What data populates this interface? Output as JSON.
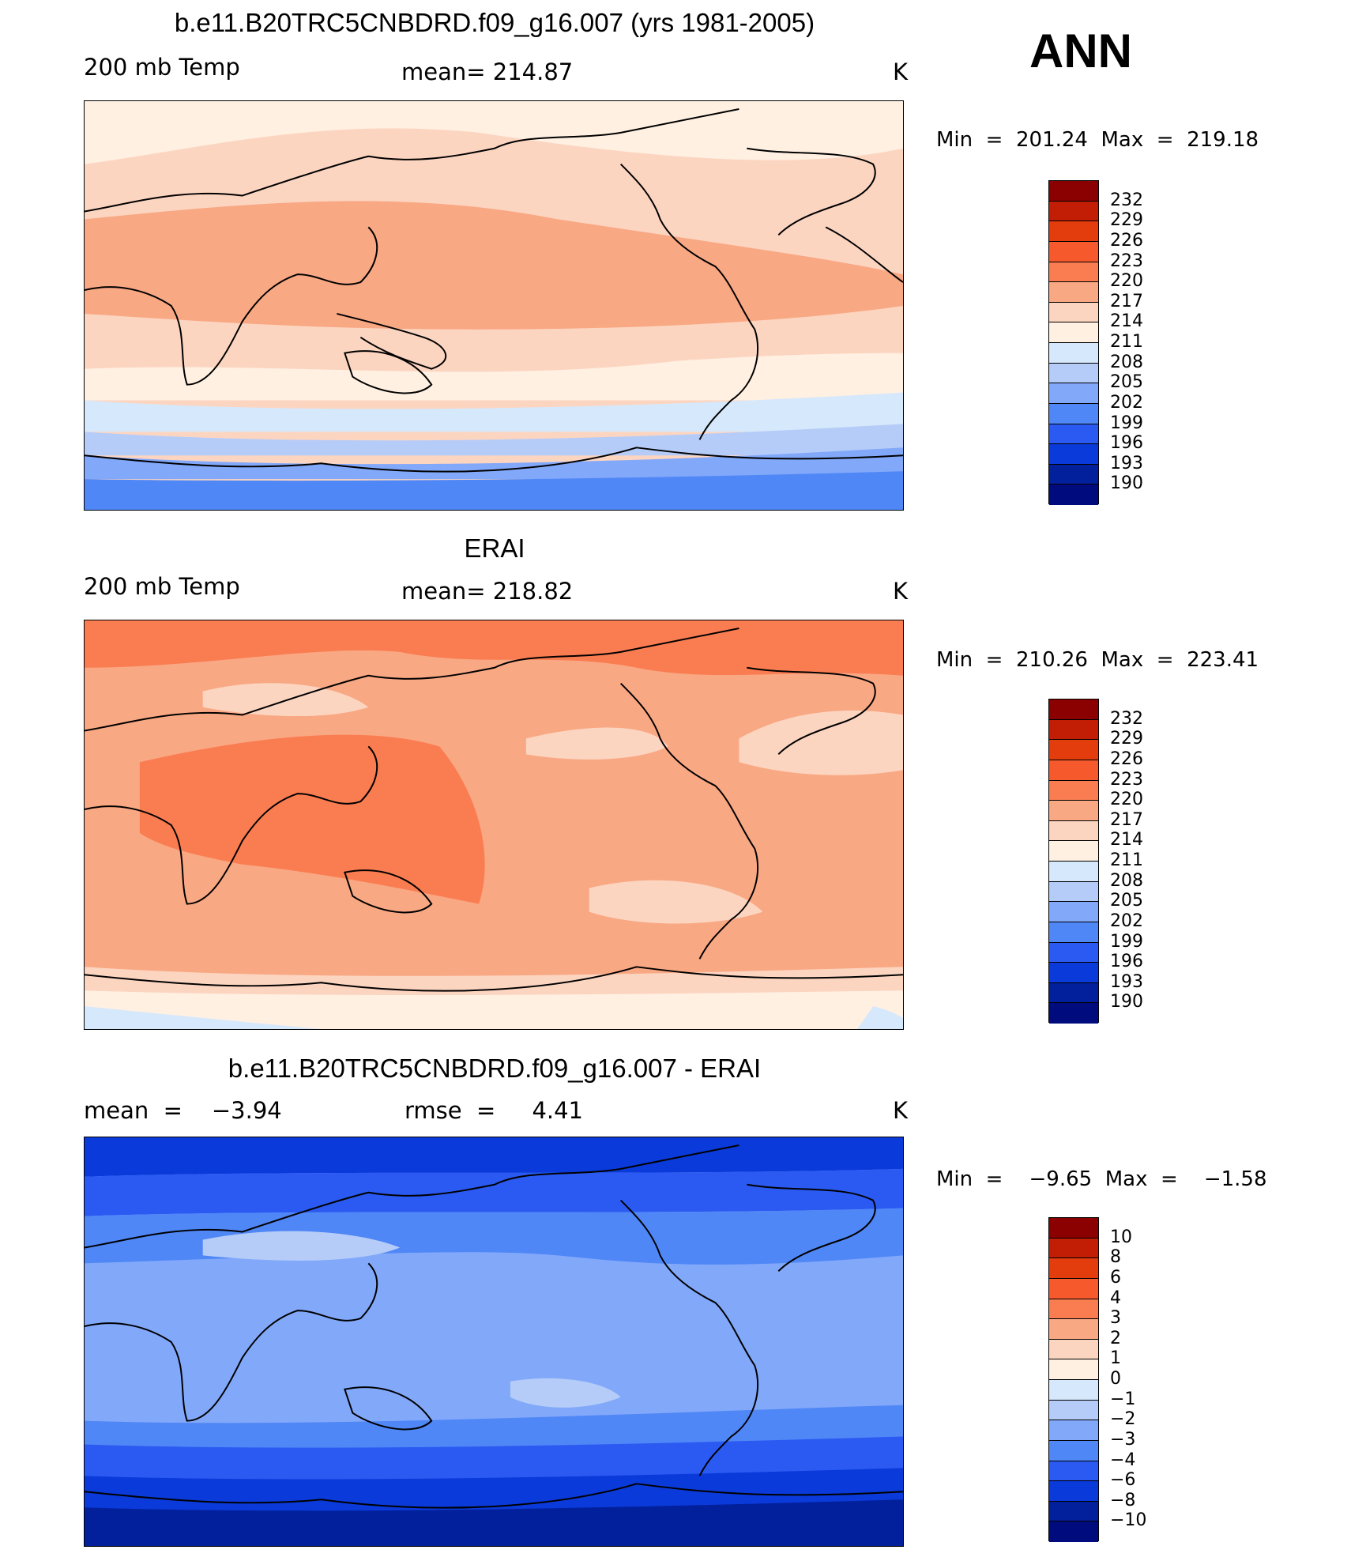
{
  "season": "ANN",
  "panels": [
    {
      "title": "b.e11.B20TRC5CNBDRD.f09_g16.007 (yrs 1981-2005)",
      "left_label": "200 mb Temp",
      "center_label": "mean=  214.87",
      "units": "K",
      "minmax": "Min  =  201.24  Max  =  219.18",
      "colorbar_labels": [
        "232",
        "229",
        "226",
        "223",
        "220",
        "217",
        "214",
        "211",
        "208",
        "205",
        "202",
        "199",
        "196",
        "193",
        "190"
      ],
      "background_color": "#fcd5c1"
    },
    {
      "title": "ERAI",
      "left_label": "200 mb Temp",
      "center_label": "mean=  218.82",
      "units": "K",
      "minmax": "Min  =  210.26  Max  =  223.41",
      "colorbar_labels": [
        "232",
        "229",
        "226",
        "223",
        "220",
        "217",
        "214",
        "211",
        "208",
        "205",
        "202",
        "199",
        "196",
        "193",
        "190"
      ],
      "background_color": "#f9a884"
    },
    {
      "title": "b.e11.B20TRC5CNBDRD.f09_g16.007 - ERAI",
      "left_label": "mean  =    −3.94",
      "center_label": "rmse  =     4.41",
      "units": "K",
      "minmax": "Min  =    −9.65  Max  =    −1.58",
      "colorbar_labels": [
        "10",
        "8",
        "6",
        "4",
        "3",
        "2",
        "1",
        "0",
        "−1",
        "−2",
        "−3",
        "−4",
        "−6",
        "−8",
        "−10"
      ],
      "background_color": "#82a8fa"
    }
  ],
  "colorbar_colors": [
    "#8b0000",
    "#c21d05",
    "#e33d0e",
    "#f6592b",
    "#fa7d52",
    "#f9a884",
    "#fcd5c1",
    "#fff0e2",
    "#d6e8fb",
    "#b5ccf8",
    "#82a8fa",
    "#5087f6",
    "#2b5af2",
    "#0a3ad9",
    "#02209b",
    "#000b7e"
  ],
  "map_colors": {
    "ocean_deep": "#0a32be",
    "land_outline": "#000000"
  }
}
